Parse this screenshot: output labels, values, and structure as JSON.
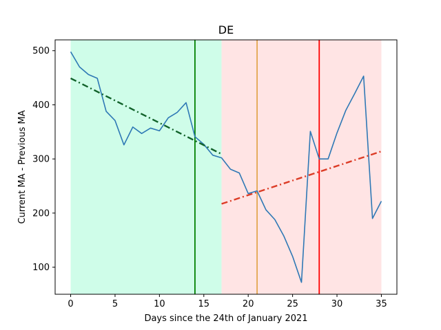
{
  "chart_data": {
    "type": "line",
    "title": "DE",
    "xlabel": "Days since the 24th of January 2021",
    "ylabel": "Current MA - Previous MA",
    "xlim": [
      -1.75,
      36.75
    ],
    "ylim": [
      50,
      520
    ],
    "xticks": [
      0,
      5,
      10,
      15,
      20,
      25,
      30,
      35
    ],
    "yticks": [
      100,
      200,
      300,
      400,
      500
    ],
    "grid": false,
    "shaded_regions": [
      {
        "x0": 0,
        "x1": 17,
        "color": "#cffde9"
      },
      {
        "x0": 17,
        "x1": 35,
        "color": "#ffe4e4"
      }
    ],
    "vertical_lines": [
      {
        "x": 14,
        "color": "#008000"
      },
      {
        "x": 21,
        "color": "#e3a64f"
      },
      {
        "x": 28,
        "color": "#ff0000"
      }
    ],
    "trend_lines": [
      {
        "x": [
          0,
          17
        ],
        "y": [
          449,
          309
        ],
        "color": "#11622a",
        "style": "dashdot"
      },
      {
        "x": [
          17,
          35
        ],
        "y": [
          217,
          314
        ],
        "color": "#dc3c26",
        "style": "dashdot"
      }
    ],
    "series": [
      {
        "color": "#2e78b5",
        "x": [
          0,
          1,
          2,
          3,
          4,
          5,
          6,
          7,
          8,
          9,
          10,
          11,
          12,
          13,
          14,
          15,
          16,
          17,
          18,
          19,
          20,
          21,
          22,
          23,
          24,
          25,
          26,
          27,
          28,
          29,
          30,
          31,
          32,
          33,
          34,
          35
        ],
        "values": [
          498,
          470,
          456,
          449,
          388,
          371,
          326,
          359,
          347,
          357,
          352,
          376,
          386,
          404,
          341,
          327,
          307,
          302,
          281,
          274,
          236,
          241,
          206,
          188,
          158,
          120,
          72,
          351,
          300,
          300,
          348,
          390,
          421,
          453,
          190,
          222
        ]
      }
    ]
  }
}
